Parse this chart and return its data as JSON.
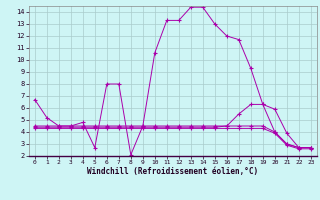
{
  "xlabel": "Windchill (Refroidissement éolien,°C)",
  "background_color": "#cef5f5",
  "grid_color": "#aacccc",
  "line_color": "#aa00aa",
  "xlim": [
    -0.5,
    23.5
  ],
  "ylim": [
    2,
    14.5
  ],
  "yticks": [
    2,
    3,
    4,
    5,
    6,
    7,
    8,
    9,
    10,
    11,
    12,
    13,
    14
  ],
  "xticks": [
    0,
    1,
    2,
    3,
    4,
    5,
    6,
    7,
    8,
    9,
    10,
    11,
    12,
    13,
    14,
    15,
    16,
    17,
    18,
    19,
    20,
    21,
    22,
    23
  ],
  "series": [
    {
      "x": [
        0,
        1,
        2,
        3,
        4,
        5,
        6,
        7,
        8,
        9,
        10,
        11,
        12,
        13,
        14,
        15,
        16,
        17,
        18,
        19,
        20,
        21,
        22,
        23
      ],
      "y": [
        6.7,
        5.2,
        4.5,
        4.5,
        4.8,
        2.7,
        8.0,
        8.0,
        2.1,
        4.5,
        10.6,
        13.3,
        13.3,
        14.4,
        14.4,
        13.0,
        12.0,
        11.7,
        9.3,
        6.3,
        5.9,
        3.9,
        2.7,
        2.7
      ]
    },
    {
      "x": [
        0,
        1,
        2,
        3,
        4,
        5,
        6,
        7,
        8,
        9,
        10,
        11,
        12,
        13,
        14,
        15,
        16,
        17,
        18,
        19,
        20,
        21,
        22,
        23
      ],
      "y": [
        4.5,
        4.5,
        4.5,
        4.5,
        4.5,
        4.5,
        4.5,
        4.5,
        4.5,
        4.5,
        4.5,
        4.5,
        4.5,
        4.5,
        4.5,
        4.5,
        4.5,
        4.5,
        4.5,
        4.5,
        4.0,
        3.0,
        2.7,
        2.7
      ]
    },
    {
      "x": [
        0,
        1,
        2,
        3,
        4,
        5,
        6,
        7,
        8,
        9,
        10,
        11,
        12,
        13,
        14,
        15,
        16,
        17,
        18,
        19,
        20,
        21,
        22,
        23
      ],
      "y": [
        4.4,
        4.4,
        4.4,
        4.4,
        4.4,
        4.4,
        4.4,
        4.4,
        4.4,
        4.4,
        4.4,
        4.4,
        4.4,
        4.4,
        4.4,
        4.4,
        4.5,
        5.5,
        6.3,
        6.3,
        4.0,
        3.0,
        2.7,
        2.7
      ]
    },
    {
      "x": [
        0,
        1,
        2,
        3,
        4,
        5,
        6,
        7,
        8,
        9,
        10,
        11,
        12,
        13,
        14,
        15,
        16,
        17,
        18,
        19,
        20,
        21,
        22,
        23
      ],
      "y": [
        4.3,
        4.3,
        4.3,
        4.3,
        4.3,
        4.3,
        4.3,
        4.3,
        4.3,
        4.3,
        4.3,
        4.3,
        4.3,
        4.3,
        4.3,
        4.3,
        4.3,
        4.3,
        4.3,
        4.3,
        3.9,
        2.9,
        2.6,
        2.6
      ]
    }
  ]
}
